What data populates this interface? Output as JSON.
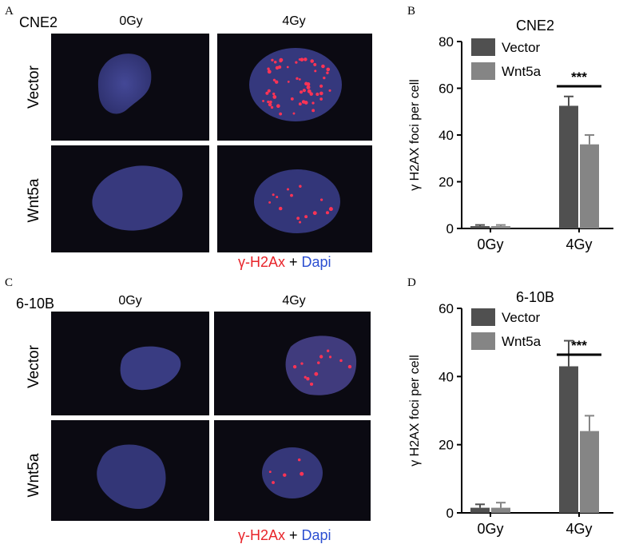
{
  "panels": {
    "A": {
      "letter": "A",
      "cell_line": "CNE2",
      "col_labels": [
        "0Gy",
        "4Gy"
      ],
      "row_labels": [
        "Vector",
        "Wnt5a"
      ]
    },
    "C": {
      "letter": "C",
      "cell_line": "6-10B",
      "col_labels": [
        "0Gy",
        "4Gy"
      ],
      "row_labels": [
        "Vector",
        "Wnt5a"
      ]
    },
    "B": {
      "letter": "B"
    },
    "D": {
      "letter": "D"
    }
  },
  "stain_legend": {
    "marker": "γ-H2Ax",
    "plus": " + ",
    "counterstain": "Dapi"
  },
  "colors": {
    "vector": "#505050",
    "wnt5a": "#858585",
    "nucleus": "#3d3f8f",
    "foci": "#ff3355",
    "stain_red": "#e8242a",
    "stain_blue": "#2c4fd1"
  },
  "chart_data": [
    {
      "type": "bar",
      "title": "CNE2",
      "ylabel": "γ  H2AX foci per cell",
      "xlabel": "",
      "categories": [
        "0Gy",
        "4Gy"
      ],
      "ylim": [
        0,
        80
      ],
      "yticks": [
        0,
        20,
        40,
        60,
        80
      ],
      "legend_position": "top-left",
      "series": [
        {
          "name": "Vector",
          "values": [
            1,
            52.5
          ],
          "errors": [
            0.5,
            4
          ]
        },
        {
          "name": "Wnt5a",
          "values": [
            1,
            36
          ],
          "errors": [
            0.5,
            4
          ]
        }
      ],
      "significance": {
        "category": "4Gy",
        "label": "***"
      }
    },
    {
      "type": "bar",
      "title": "6-10B",
      "ylabel": "γ  H2AX foci per cell",
      "xlabel": "",
      "categories": [
        "0Gy",
        "4Gy"
      ],
      "ylim": [
        0,
        60
      ],
      "yticks": [
        0,
        20,
        40,
        60
      ],
      "legend_position": "top-left",
      "series": [
        {
          "name": "Vector",
          "values": [
            1.5,
            43
          ],
          "errors": [
            1,
            7.5
          ]
        },
        {
          "name": "Wnt5a",
          "values": [
            1.5,
            24
          ],
          "errors": [
            1.5,
            4.5
          ]
        }
      ],
      "significance": {
        "category": "4Gy",
        "label": "***"
      }
    }
  ]
}
